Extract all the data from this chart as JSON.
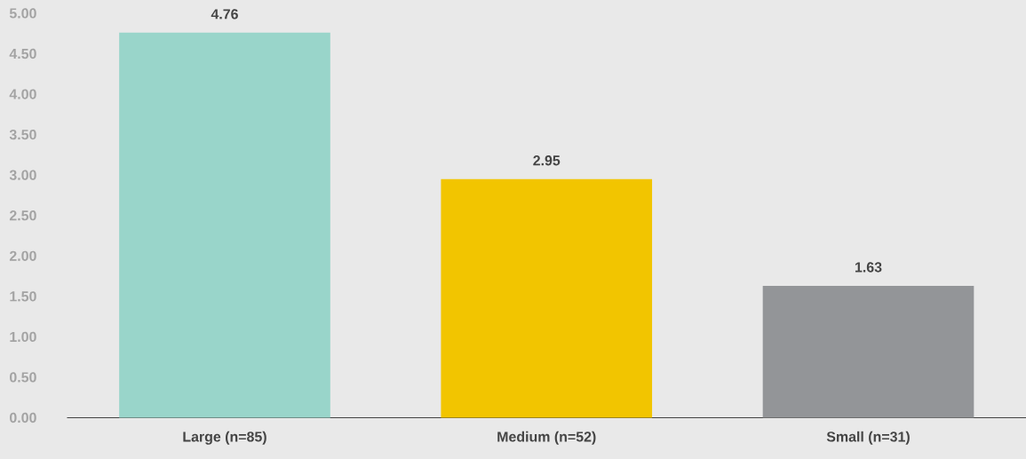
{
  "chart_data": {
    "type": "bar",
    "categories": [
      "Large (n=85)",
      "Medium (n=52)",
      "Small (n=31)"
    ],
    "values": [
      4.76,
      2.95,
      1.63
    ],
    "colors": [
      "#99d5ca",
      "#f2c500",
      "#939598"
    ],
    "ylim": [
      0,
      5
    ],
    "yticks": [
      {
        "value": 0,
        "label": "0.00"
      },
      {
        "value": 0.5,
        "label": "0.50"
      },
      {
        "value": 1,
        "label": "1.00"
      },
      {
        "value": 1.5,
        "label": "1.50"
      },
      {
        "value": 2,
        "label": "2.00"
      },
      {
        "value": 2.5,
        "label": "2.50"
      },
      {
        "value": 3,
        "label": "3.00"
      },
      {
        "value": 3.5,
        "label": "3.50"
      },
      {
        "value": 4,
        "label": "4.00"
      },
      {
        "value": 4.5,
        "label": "4.50"
      },
      {
        "value": 5,
        "label": "5.00"
      }
    ],
    "data_labels": true
  }
}
